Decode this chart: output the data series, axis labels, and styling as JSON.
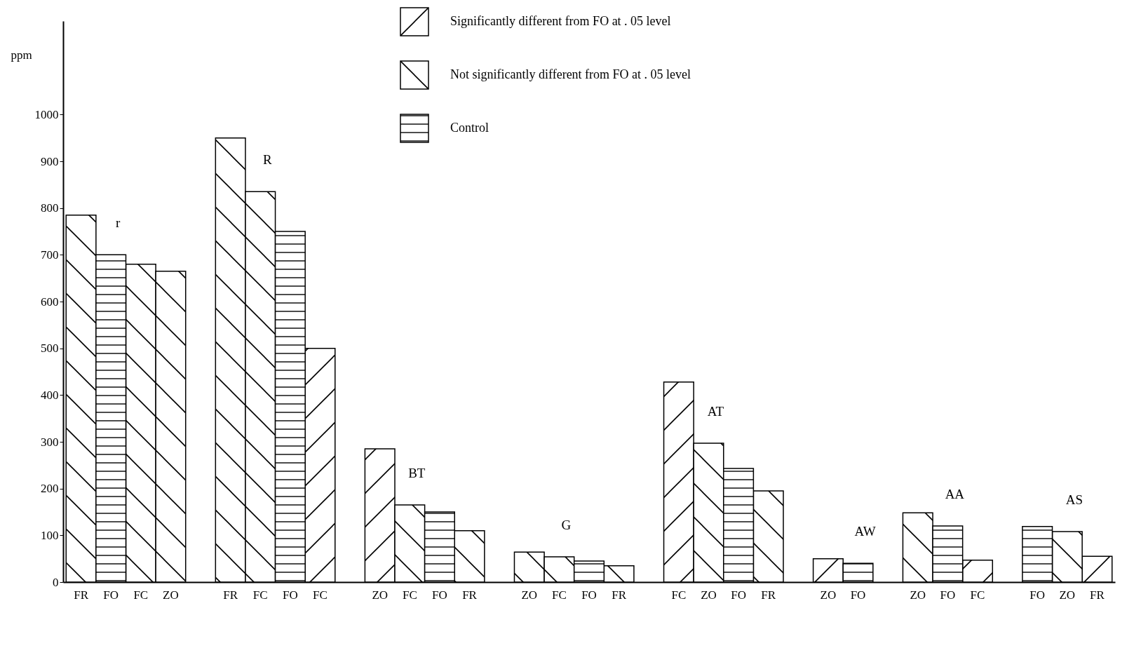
{
  "chart_data": {
    "type": "bar",
    "ylabel": "ppm",
    "ylim": [
      0,
      1200
    ],
    "yticks": [
      0,
      100,
      200,
      300,
      400,
      500,
      600,
      700,
      800,
      900,
      {
        "value": 1000,
        "label": "1000"
      }
    ],
    "grid": false,
    "legend": "top",
    "categories": [
      "FR",
      "FO",
      "FC",
      "ZO",
      null,
      "FR",
      "FC",
      "FO",
      "FC",
      null,
      "ZO",
      "FC",
      "FO",
      "FR",
      null,
      "ZO",
      "FC",
      "FO",
      "FR",
      null,
      "FC",
      "ZO",
      "FO",
      "FR",
      null,
      "ZO",
      "FO",
      null,
      "ZO",
      "FO",
      "FC",
      null,
      "FO",
      "ZO",
      "FR"
    ],
    "series": [
      {
        "name": "Significantly different from FO at . 05 level",
        "color": "#000000",
        "values": [
          null,
          null,
          null,
          null,
          null,
          null,
          null,
          null,
          500,
          null,
          285,
          null,
          null,
          null,
          null,
          null,
          null,
          null,
          null,
          null,
          428,
          null,
          null,
          null,
          null,
          50,
          null,
          null,
          null,
          null,
          47,
          null,
          null,
          null,
          55
        ]
      },
      {
        "name": "Not significantly different from FO at . 05 level",
        "color": "#000000",
        "values": [
          785,
          null,
          680,
          665,
          null,
          950,
          835,
          null,
          null,
          null,
          null,
          165,
          null,
          110,
          null,
          64,
          54,
          null,
          35,
          null,
          null,
          297,
          null,
          195,
          null,
          null,
          null,
          null,
          148,
          null,
          null,
          null,
          null,
          108,
          null
        ]
      },
      {
        "name": "Control",
        "color": "#000000",
        "values": [
          null,
          700,
          null,
          null,
          null,
          null,
          null,
          750,
          null,
          null,
          null,
          null,
          150,
          null,
          null,
          null,
          null,
          45,
          null,
          null,
          null,
          null,
          243,
          null,
          null,
          null,
          40,
          null,
          null,
          120,
          null,
          null,
          119,
          null,
          null
        ]
      }
    ],
    "annotations": [
      "r",
      "R",
      "BT",
      "G",
      "AT",
      "AW",
      "AA",
      "AS"
    ]
  }
}
